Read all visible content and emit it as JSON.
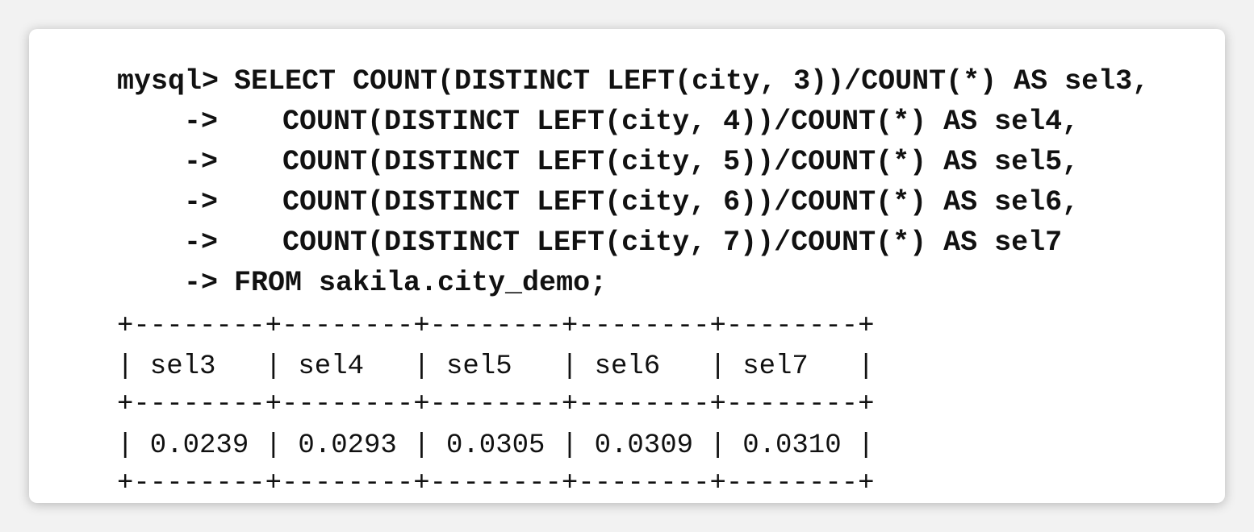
{
  "query": {
    "lines": [
      {
        "prompt": "mysql>",
        "code": "SELECT COUNT(DISTINCT LEFT(city, 3))/COUNT(*) AS sel3,"
      },
      {
        "prompt": "->",
        "code": "COUNT(DISTINCT LEFT(city, 4))/COUNT(*) AS sel4,"
      },
      {
        "prompt": "->",
        "code": "COUNT(DISTINCT LEFT(city, 5))/COUNT(*) AS sel5,"
      },
      {
        "prompt": "->",
        "code": "COUNT(DISTINCT LEFT(city, 6))/COUNT(*) AS sel6,"
      },
      {
        "prompt": "->",
        "code": "COUNT(DISTINCT LEFT(city, 7))/COUNT(*) AS sel7"
      },
      {
        "prompt": "->",
        "code": "FROM sakila.city_demo;"
      }
    ]
  },
  "table": {
    "border": "+--------+--------+--------+--------+--------+",
    "headers": [
      "sel3",
      "sel4",
      "sel5",
      "sel6",
      "sel7"
    ],
    "rows": [
      [
        "0.0239",
        "0.0293",
        "0.0305",
        "0.0309",
        "0.0310"
      ]
    ]
  }
}
